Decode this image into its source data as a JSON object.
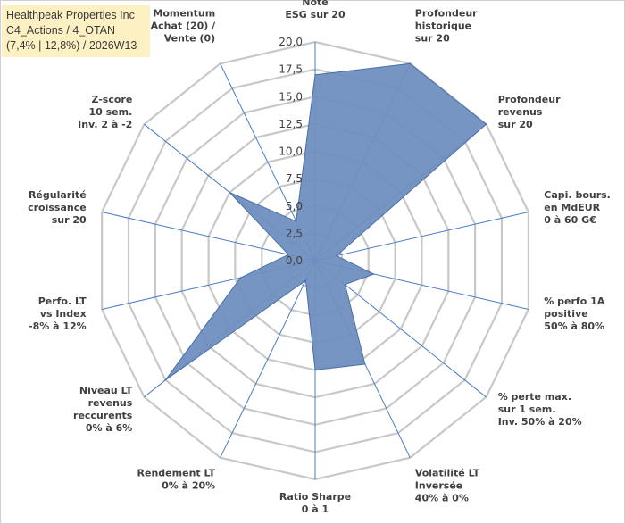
{
  "info_box": {
    "line1": "Healthpeak Properties Inc",
    "line2": "C4_Actions / 4_OTAN",
    "line3": "(7,4% | 12,8%) / 2026W13"
  },
  "chart_data": {
    "type": "radar",
    "title": "",
    "rmin": 0,
    "rmax": 20,
    "tick_step": 2.5,
    "tick_labels": [
      "0,0",
      "2,5",
      "5,0",
      "7,5",
      "10,0",
      "12,5",
      "15,0",
      "17,5",
      "20,0"
    ],
    "grid": true,
    "colors": {
      "fill": "#6f8fc0",
      "stroke": "#4a6fa8",
      "grid": "#c8c8c8",
      "spoke": "#4a7cc4"
    },
    "axes": [
      {
        "label": [
          "Note",
          "ESG sur 20"
        ],
        "value": 17.0
      },
      {
        "label": [
          "Profondeur",
          "historique",
          "sur 20"
        ],
        "value": 20.0
      },
      {
        "label": [
          "Profondeur",
          "revenus",
          "sur 20"
        ],
        "value": 20.0
      },
      {
        "label": [
          "Capi. bours.",
          "en MdEUR",
          "0 à 60 G€"
        ],
        "value": 2.0
      },
      {
        "label": [
          "% perfo 1A",
          "positive",
          "50% à 80%"
        ],
        "value": 5.5
      },
      {
        "label": [
          "% perte max.",
          "sur 1 sem.",
          "Inv. 50% à 20%"
        ],
        "value": 3.5
      },
      {
        "label": [
          "Volatilité LT",
          "Inversée",
          "40% à 0%"
        ],
        "value": 10.5
      },
      {
        "label": [
          "Ratio Sharpe",
          "0 à 1"
        ],
        "value": 10.0
      },
      {
        "label": [
          "Rendement LT",
          "0% à 20%"
        ],
        "value": 2.0
      },
      {
        "label": [
          "Niveau LT",
          "revenus",
          "reccurents",
          "0% à 6%"
        ],
        "value": 17.5
      },
      {
        "label": [
          "Perfo. LT",
          "vs Index",
          "-8% à 12%"
        ],
        "value": 7.0
      },
      {
        "label": [
          "Régularité",
          "croissance",
          "sur 20"
        ],
        "value": 2.5
      },
      {
        "label": [
          "Z-score",
          "10 sem.",
          "Inv. 2 à -2"
        ],
        "value": 10.0
      },
      {
        "label": [
          "Momentum",
          "Achat (20) /",
          "Vente (0)"
        ],
        "value": 4.0
      }
    ]
  }
}
